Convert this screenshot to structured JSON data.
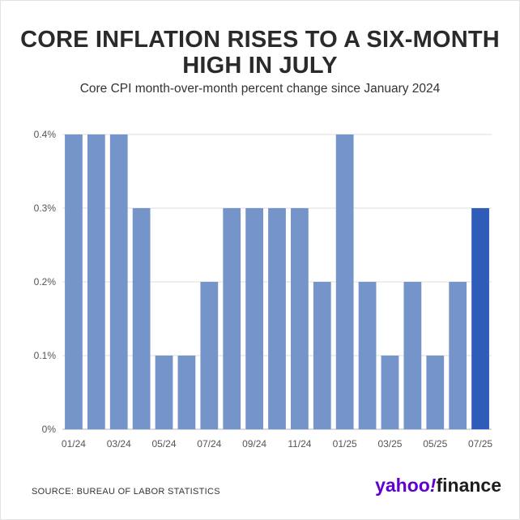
{
  "header": {
    "title": "CORE INFLATION RISES TO A SIX-MONTH HIGH IN JULY",
    "subtitle": "Core CPI month-over-month percent change since January 2024"
  },
  "footer": {
    "source": "SOURCE: BUREAU OF LABOR STATISTICS",
    "logo_part1": "yahoo",
    "logo_bang": "!",
    "logo_part2": "finance"
  },
  "colors": {
    "bar": "#7594c9",
    "highlight": "#2e5cb8",
    "grid": "#dedede",
    "axis": "#b5b5b5"
  },
  "chart_data": {
    "type": "bar",
    "title": "CORE INFLATION RISES TO A SIX-MONTH HIGH IN JULY",
    "subtitle": "Core CPI month-over-month percent change since January 2024",
    "xlabel": "",
    "ylabel": "",
    "categories": [
      "01/24",
      "02/24",
      "03/24",
      "04/24",
      "05/24",
      "06/24",
      "07/24",
      "08/24",
      "09/24",
      "10/24",
      "11/24",
      "12/24",
      "01/25",
      "02/25",
      "03/25",
      "04/25",
      "05/25",
      "06/25",
      "07/25"
    ],
    "values": [
      0.4,
      0.4,
      0.4,
      0.3,
      0.1,
      0.1,
      0.2,
      0.3,
      0.3,
      0.3,
      0.3,
      0.2,
      0.4,
      0.2,
      0.1,
      0.2,
      0.1,
      0.2,
      0.3
    ],
    "x_tick_labels": [
      "01/24",
      "03/24",
      "05/24",
      "07/24",
      "09/24",
      "11/24",
      "01/25",
      "03/25",
      "05/25",
      "07/25"
    ],
    "y_ticks": [
      0,
      0.1,
      0.2,
      0.3,
      0.4
    ],
    "y_tick_labels": [
      "0%",
      "0.1%",
      "0.2%",
      "0.3%",
      "0.4%"
    ],
    "ylim": [
      0,
      0.4
    ],
    "highlight_category": "07/25",
    "grid": true,
    "legend": "none"
  }
}
